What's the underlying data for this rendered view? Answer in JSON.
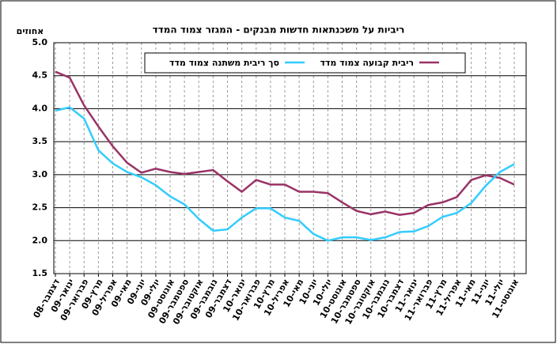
{
  "chart_data": {
    "type": "line",
    "title": "ריביות על משכנתאות חדשות מבנקים - המגזר צמוד המדד",
    "y_label": "אחוזים",
    "categories": [
      "דצמבר-08",
      "ינואר-09",
      "פברואר-09",
      "מרץ-09",
      "אפריל-09",
      "מאי-09",
      "יוני-09",
      "יולי-09",
      "אוגוסט-09",
      "ספטמבר-09",
      "אוקטובר-09",
      "נובמבר-09",
      "דצמבר-09",
      "ינואר-10",
      "פברואר-10",
      "מרץ-10",
      "אפריל-10",
      "מאי-10",
      "יוני-10",
      "יולי-10",
      "אוגוסט-10",
      "ספטמבר-10",
      "אוקטובר-10",
      "נובמבר-10",
      "דצמבר-10",
      "ינואר-11",
      "פברואר-11",
      "מרץ-11",
      "אפריל-11",
      "מאי-11",
      "יוני-11",
      "יולי-11",
      "אוגוסט-11"
    ],
    "series": [
      {
        "name": "ריבית קבועה צמוד מדד",
        "color": "#993366",
        "values": [
          4.56,
          4.47,
          4.05,
          3.73,
          3.43,
          3.18,
          3.03,
          3.09,
          3.04,
          3.01,
          3.04,
          3.07,
          2.9,
          2.74,
          2.92,
          2.85,
          2.85,
          2.74,
          2.74,
          2.72,
          2.58,
          2.45,
          2.4,
          2.44,
          2.39,
          2.42,
          2.54,
          2.58,
          2.66,
          2.92,
          2.99,
          2.95,
          2.85
        ]
      },
      {
        "name": "סך ריבית משתנה צמוד מדד",
        "color": "#33ccff",
        "values": [
          3.97,
          4.02,
          3.85,
          3.37,
          3.17,
          3.04,
          2.96,
          2.84,
          2.67,
          2.55,
          2.33,
          2.15,
          2.17,
          2.35,
          2.49,
          2.49,
          2.35,
          2.3,
          2.1,
          2.0,
          2.05,
          2.05,
          2.01,
          2.05,
          2.13,
          2.14,
          2.22,
          2.36,
          2.42,
          2.57,
          2.83,
          3.04,
          3.16
        ]
      }
    ],
    "ylim": [
      1.5,
      5.0
    ],
    "yticks": [
      1.5,
      {
        "value": 2,
        "label": "2.0"
      },
      2.5,
      {
        "value": 3,
        "label": "3.0"
      },
      3.5,
      {
        "value": 4,
        "label": "4.0"
      },
      4.5,
      {
        "value": 5,
        "label": "5.0"
      }
    ],
    "grid": true
  }
}
